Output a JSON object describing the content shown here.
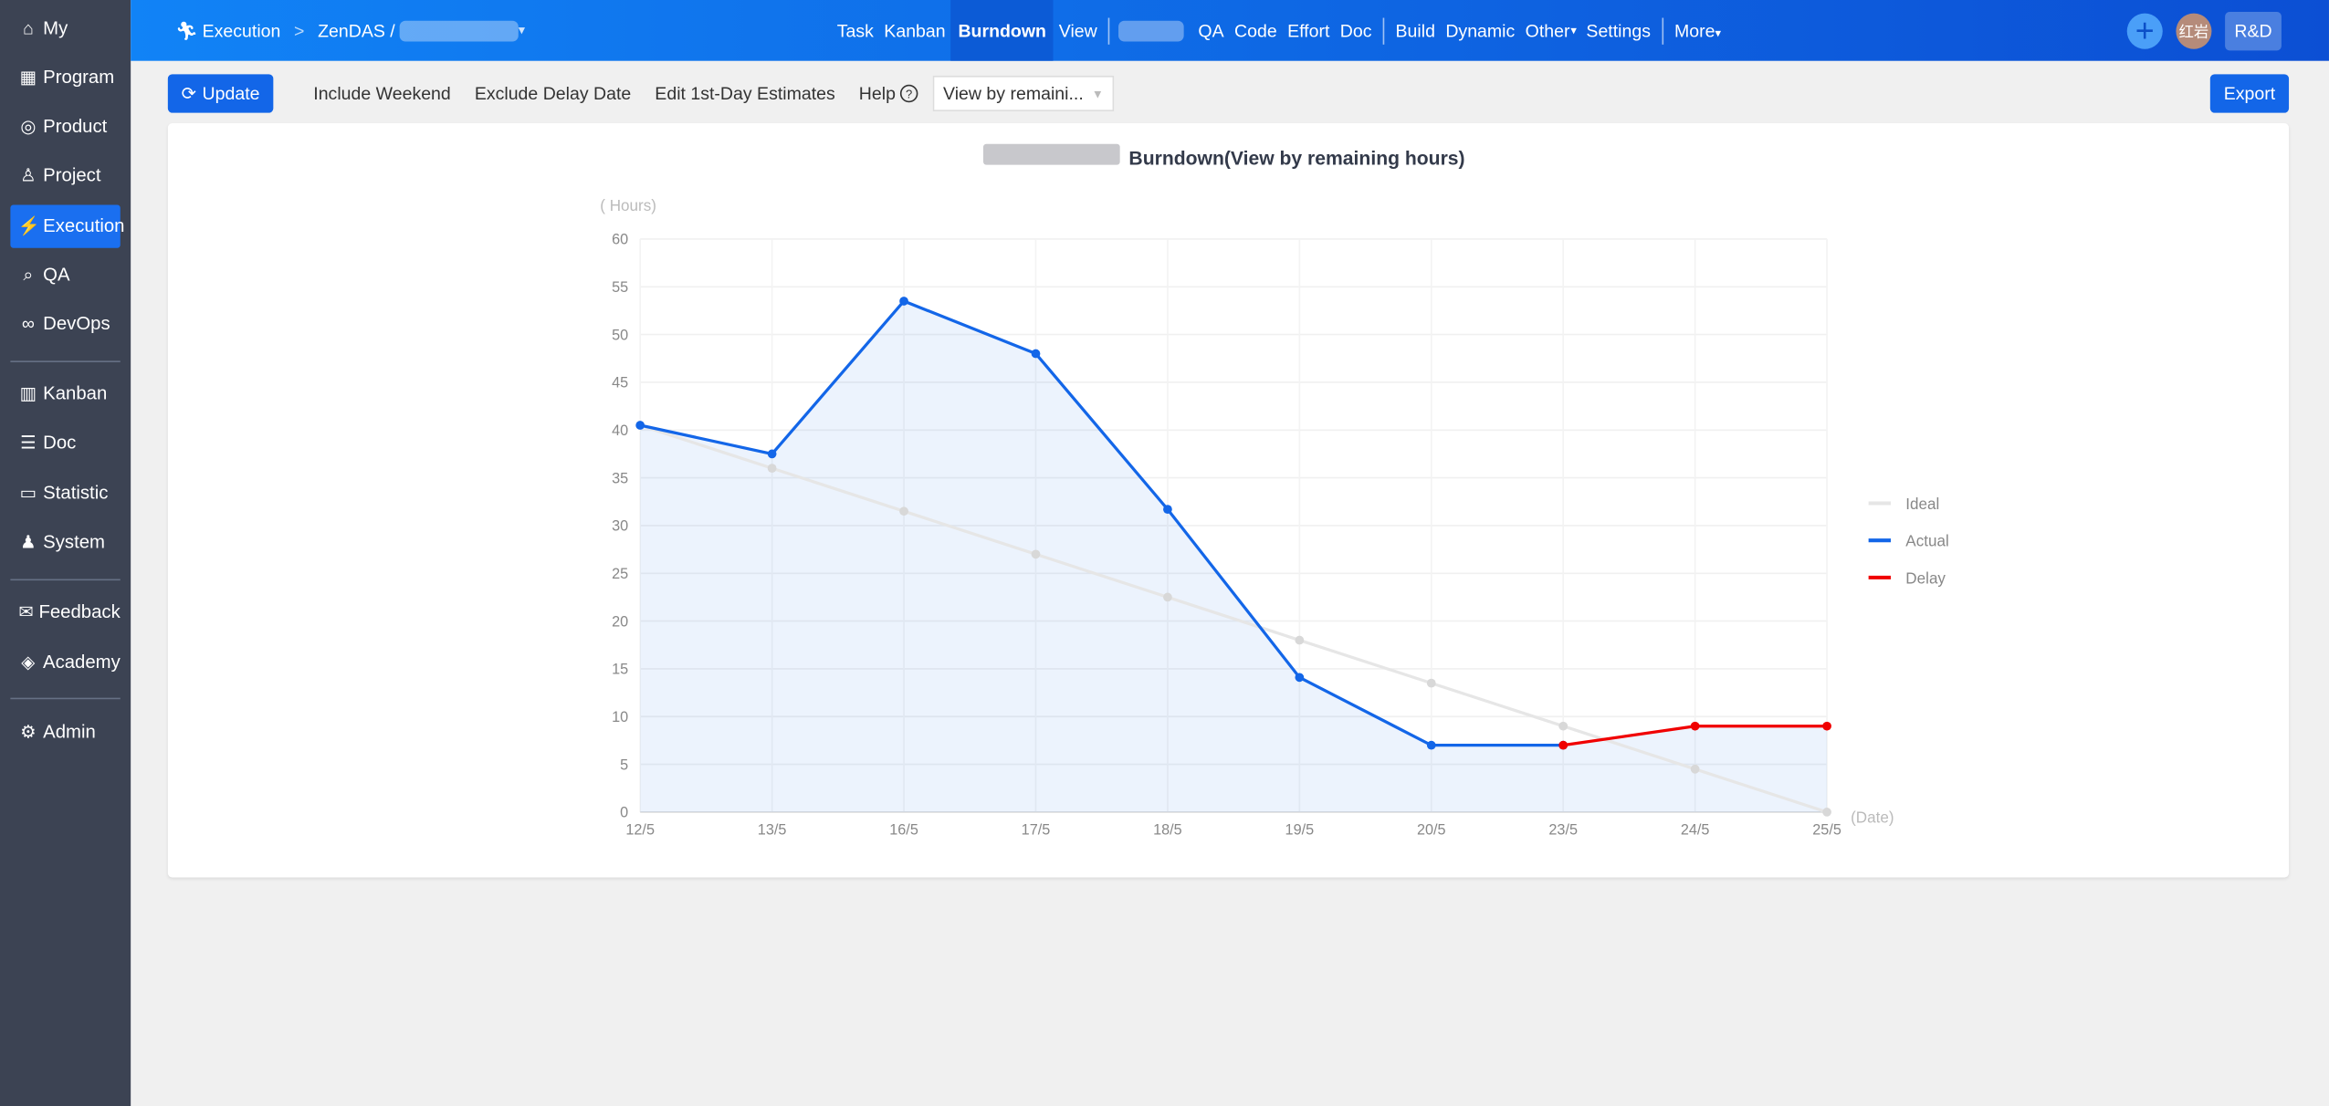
{
  "sidebar": {
    "items": [
      {
        "label": "My",
        "icon": "home-icon",
        "glyph": "⌂"
      },
      {
        "label": "Program",
        "icon": "grid-icon",
        "glyph": "▦"
      },
      {
        "label": "Product",
        "icon": "bulb-icon",
        "glyph": "◎"
      },
      {
        "label": "Project",
        "icon": "rocket-icon",
        "glyph": "♙"
      },
      {
        "label": "Execution",
        "icon": "run-icon",
        "glyph": "⚡"
      },
      {
        "label": "QA",
        "icon": "search-icon",
        "glyph": "⌕"
      },
      {
        "label": "DevOps",
        "icon": "infinity-icon",
        "glyph": "∞"
      },
      {
        "label": "Kanban",
        "icon": "kanban-icon",
        "glyph": "▥"
      },
      {
        "label": "Doc",
        "icon": "doc-icon",
        "glyph": "☰"
      },
      {
        "label": "Statistic",
        "icon": "monitor-icon",
        "glyph": "▭"
      },
      {
        "label": "System",
        "icon": "users-icon",
        "glyph": "♟"
      },
      {
        "label": "Feedback",
        "icon": "feedback-icon",
        "glyph": "✉"
      },
      {
        "label": "Academy",
        "icon": "cube-icon",
        "glyph": "◈"
      },
      {
        "label": "Admin",
        "icon": "gear-icon",
        "glyph": "⚙"
      }
    ],
    "active": "Execution"
  },
  "header": {
    "breadcrumb_root": "Execution",
    "breadcrumb_sep": ">",
    "breadcrumb_item": "ZenDAS /",
    "nav": [
      "Task",
      "Kanban",
      "Burndown",
      "View"
    ],
    "nav2": [
      "QA",
      "Code",
      "Effort",
      "Doc"
    ],
    "nav3": [
      "Build",
      "Dynamic",
      "Other",
      "Settings"
    ],
    "more": "More",
    "active": "Burndown",
    "avatar": "红岩",
    "role": "R&D",
    "caret": "▾"
  },
  "toolbar": {
    "update": "Update",
    "include_weekend": "Include Weekend",
    "exclude_delay": "Exclude Delay Date",
    "edit_first_day": "Edit 1st-Day Estimates",
    "help": "Help",
    "select_value": "View by remaini...",
    "export": "Export"
  },
  "colors": {
    "accent": "#1366e8",
    "ideal": "#e6e6e6",
    "actual": "#1366e8",
    "delay": "#f00000"
  },
  "chart_data": {
    "type": "line",
    "title": "Burndown(View by remaining hours)",
    "ylabel": "( Hours)",
    "xlabel": "(Date)",
    "ylim": [
      0,
      60
    ],
    "yticks": [
      0,
      5,
      10,
      15,
      20,
      25,
      30,
      35,
      40,
      45,
      50,
      55,
      60
    ],
    "categories": [
      "12/5",
      "13/5",
      "16/5",
      "17/5",
      "18/5",
      "19/5",
      "20/5",
      "23/5",
      "24/5",
      "25/5"
    ],
    "legend_position": "right",
    "series": [
      {
        "name": "Ideal",
        "values": [
          40.5,
          36,
          31.5,
          27,
          22.5,
          18,
          13.5,
          9,
          4.5,
          0
        ]
      },
      {
        "name": "Actual",
        "values": [
          40.5,
          37.5,
          53.5,
          48,
          31.7,
          14.1,
          7,
          7,
          null,
          null
        ]
      },
      {
        "name": "Delay",
        "values": [
          null,
          null,
          null,
          null,
          null,
          null,
          null,
          7,
          9,
          9
        ]
      }
    ]
  }
}
